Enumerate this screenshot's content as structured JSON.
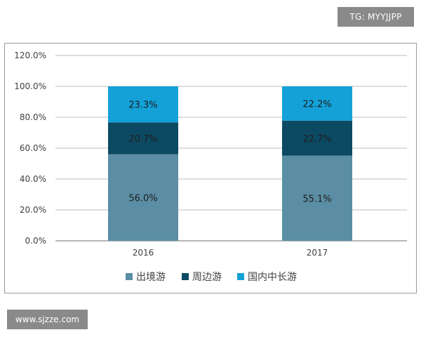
{
  "watermarks": {
    "top": "TG: MYYJJPP",
    "bottom": "www.sjzze.com"
  },
  "chart_data": {
    "type": "bar",
    "stacked": true,
    "categories": [
      "2016",
      "2017"
    ],
    "series": [
      {
        "name": "出境游",
        "values": [
          56.0,
          55.1
        ],
        "color": "#5b8ea4",
        "labels": [
          "56.0%",
          "55.1%"
        ]
      },
      {
        "name": "周边游",
        "values": [
          20.7,
          22.7
        ],
        "color": "#0c4a63",
        "labels": [
          "20.7%",
          "22.7%"
        ]
      },
      {
        "name": "国内中长游",
        "values": [
          23.3,
          22.2
        ],
        "color": "#13a1d8",
        "labels": [
          "23.3%",
          "22.2%"
        ]
      }
    ],
    "ylim": [
      0,
      120
    ],
    "yticks": [
      0,
      20,
      40,
      60,
      80,
      100,
      120
    ],
    "ytick_labels": [
      "0.0%",
      "20.0%",
      "40.0%",
      "60.0%",
      "80.0%",
      "100.0%",
      "120.0%"
    ],
    "grid": true,
    "legend_position": "bottom",
    "title": "",
    "xlabel": "",
    "ylabel": ""
  }
}
